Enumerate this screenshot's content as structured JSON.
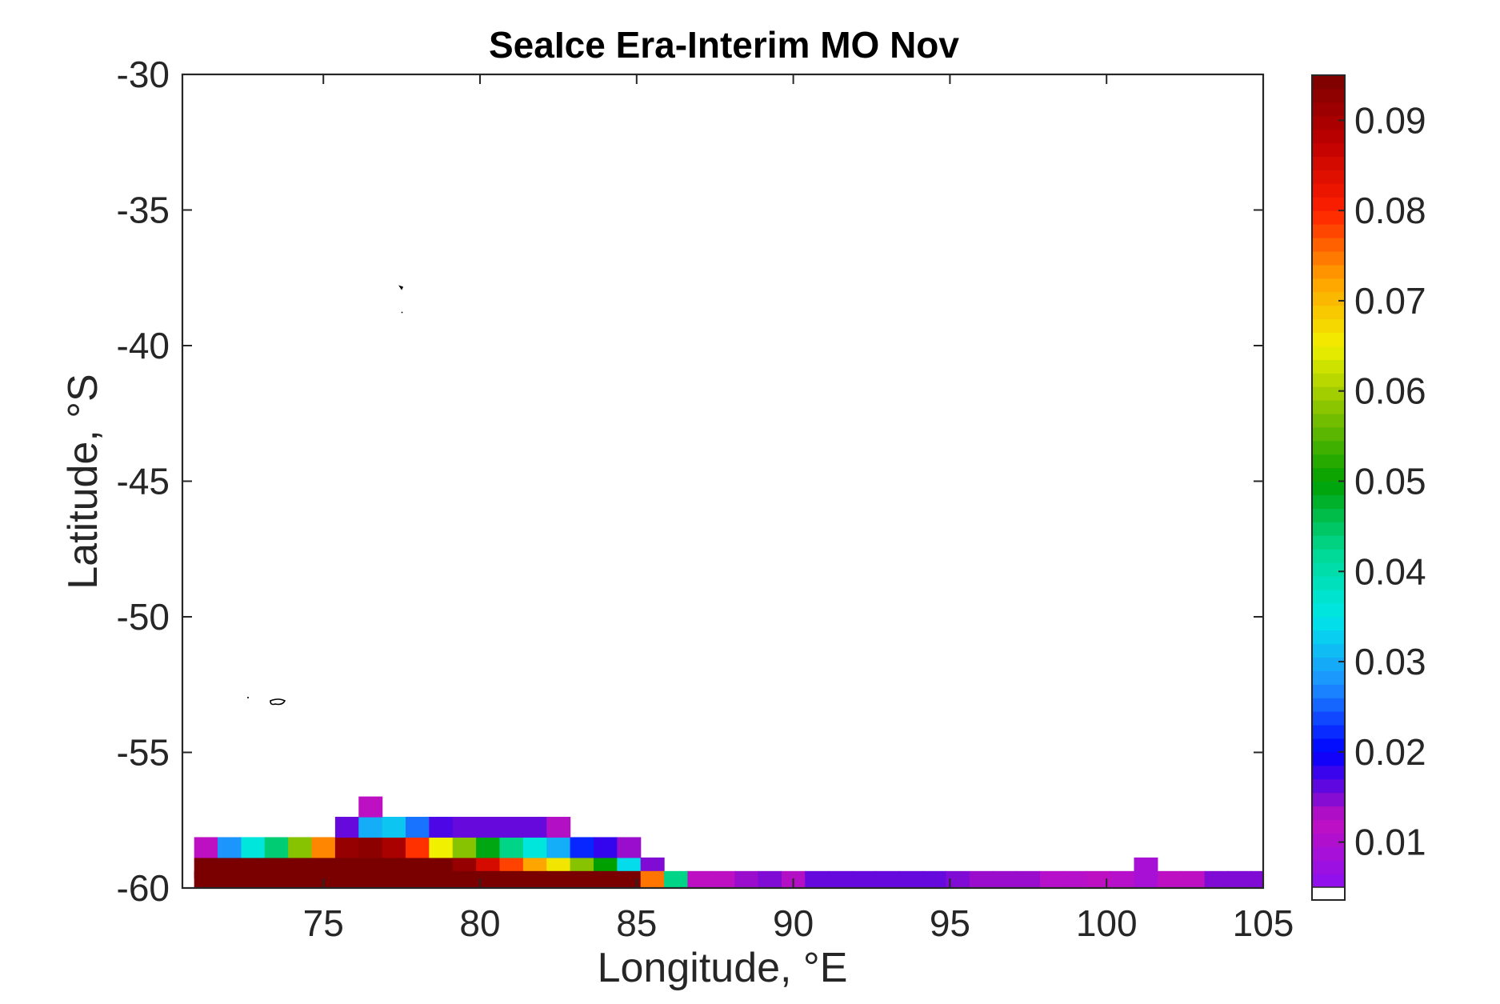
{
  "chart_data": {
    "type": "heatmap",
    "title": "SeaIce Era-Interim MO Nov",
    "xlabel": "Longitude, °E",
    "ylabel": "Latitude, °S",
    "xlim": [
      70.5,
      105
    ],
    "ylim": [
      -60,
      -30
    ],
    "xticks": [
      "75",
      "80",
      "85",
      "90",
      "95",
      "100",
      "105"
    ],
    "yticks": [
      "-30",
      "-35",
      "-40",
      "-45",
      "-50",
      "-55",
      "-60"
    ],
    "colorbar": {
      "min": 0.005,
      "max": 0.095,
      "ticks": [
        "0.01",
        "0.02",
        "0.03",
        "0.04",
        "0.05",
        "0.06",
        "0.07",
        "0.08",
        "0.09"
      ],
      "colormap": [
        "#8c10f0",
        "#c010c0",
        "#0000ff",
        "#1e90ff",
        "#00e8e8",
        "#00d890",
        "#00a000",
        "#80c000",
        "#f0f000",
        "#ffa000",
        "#ff2000",
        "#c00000",
        "#7a0000"
      ]
    },
    "grid_step_deg": 0.75,
    "cells": [
      {
        "lon": 71.25,
        "lat": -59.25,
        "value": 0.095
      },
      {
        "lon": 72.0,
        "lat": -59.25,
        "value": 0.095
      },
      {
        "lon": 72.75,
        "lat": -59.25,
        "value": 0.095
      },
      {
        "lon": 73.5,
        "lat": -59.25,
        "value": 0.095
      },
      {
        "lon": 74.25,
        "lat": -59.25,
        "value": 0.095
      },
      {
        "lon": 75.0,
        "lat": -59.25,
        "value": 0.095
      },
      {
        "lon": 75.75,
        "lat": -59.25,
        "value": 0.095
      },
      {
        "lon": 76.5,
        "lat": -59.25,
        "value": 0.095
      },
      {
        "lon": 77.25,
        "lat": -59.25,
        "value": 0.095
      },
      {
        "lon": 78.0,
        "lat": -59.25,
        "value": 0.095
      },
      {
        "lon": 78.75,
        "lat": -59.25,
        "value": 0.095
      },
      {
        "lon": 79.5,
        "lat": -59.25,
        "value": 0.092
      },
      {
        "lon": 80.25,
        "lat": -59.25,
        "value": 0.085
      },
      {
        "lon": 81.0,
        "lat": -59.25,
        "value": 0.078
      },
      {
        "lon": 81.75,
        "lat": -59.25,
        "value": 0.072
      },
      {
        "lon": 82.5,
        "lat": -59.25,
        "value": 0.066
      },
      {
        "lon": 83.25,
        "lat": -59.25,
        "value": 0.058
      },
      {
        "lon": 84.0,
        "lat": -59.25,
        "value": 0.05
      },
      {
        "lon": 84.75,
        "lat": -59.25,
        "value": 0.034
      },
      {
        "lon": 85.5,
        "lat": -59.25,
        "value": 0.015
      },
      {
        "lon": 71.25,
        "lat": -59.75,
        "value": 0.095
      },
      {
        "lon": 72.0,
        "lat": -59.75,
        "value": 0.095
      },
      {
        "lon": 72.75,
        "lat": -59.75,
        "value": 0.095
      },
      {
        "lon": 73.5,
        "lat": -59.75,
        "value": 0.095
      },
      {
        "lon": 74.25,
        "lat": -59.75,
        "value": 0.095
      },
      {
        "lon": 75.0,
        "lat": -59.75,
        "value": 0.095
      },
      {
        "lon": 75.75,
        "lat": -59.75,
        "value": 0.095
      },
      {
        "lon": 76.5,
        "lat": -59.75,
        "value": 0.095
      },
      {
        "lon": 77.25,
        "lat": -59.75,
        "value": 0.095
      },
      {
        "lon": 78.0,
        "lat": -59.75,
        "value": 0.095
      },
      {
        "lon": 78.75,
        "lat": -59.75,
        "value": 0.095
      },
      {
        "lon": 79.5,
        "lat": -59.75,
        "value": 0.095
      },
      {
        "lon": 80.25,
        "lat": -59.75,
        "value": 0.095
      },
      {
        "lon": 81.0,
        "lat": -59.75,
        "value": 0.095
      },
      {
        "lon": 81.75,
        "lat": -59.75,
        "value": 0.095
      },
      {
        "lon": 82.5,
        "lat": -59.75,
        "value": 0.095
      },
      {
        "lon": 83.25,
        "lat": -59.75,
        "value": 0.095
      },
      {
        "lon": 84.0,
        "lat": -59.75,
        "value": 0.095
      },
      {
        "lon": 84.75,
        "lat": -59.75,
        "value": 0.095
      },
      {
        "lon": 85.5,
        "lat": -59.75,
        "value": 0.075
      },
      {
        "lon": 86.25,
        "lat": -59.75,
        "value": 0.043
      },
      {
        "lon": 87.0,
        "lat": -59.75,
        "value": 0.012
      },
      {
        "lon": 87.75,
        "lat": -59.75,
        "value": 0.012
      },
      {
        "lon": 88.5,
        "lat": -59.75,
        "value": 0.014
      },
      {
        "lon": 89.25,
        "lat": -59.75,
        "value": 0.015
      },
      {
        "lon": 90.0,
        "lat": -59.75,
        "value": 0.013
      },
      {
        "lon": 90.75,
        "lat": -59.75,
        "value": 0.016
      },
      {
        "lon": 91.5,
        "lat": -59.75,
        "value": 0.016
      },
      {
        "lon": 92.25,
        "lat": -59.75,
        "value": 0.016
      },
      {
        "lon": 93.0,
        "lat": -59.75,
        "value": 0.016
      },
      {
        "lon": 93.75,
        "lat": -59.75,
        "value": 0.016
      },
      {
        "lon": 94.5,
        "lat": -59.75,
        "value": 0.016
      },
      {
        "lon": 95.25,
        "lat": -59.75,
        "value": 0.015
      },
      {
        "lon": 96.0,
        "lat": -59.75,
        "value": 0.014
      },
      {
        "lon": 96.75,
        "lat": -59.75,
        "value": 0.014
      },
      {
        "lon": 97.5,
        "lat": -59.75,
        "value": 0.014
      },
      {
        "lon": 98.25,
        "lat": -59.75,
        "value": 0.011
      },
      {
        "lon": 99.0,
        "lat": -59.75,
        "value": 0.011
      },
      {
        "lon": 99.75,
        "lat": -59.75,
        "value": 0.012
      },
      {
        "lon": 100.5,
        "lat": -59.75,
        "value": 0.011
      },
      {
        "lon": 101.25,
        "lat": -59.75,
        "value": 0.009
      },
      {
        "lon": 102.0,
        "lat": -59.75,
        "value": 0.012
      },
      {
        "lon": 102.75,
        "lat": -59.75,
        "value": 0.012
      },
      {
        "lon": 103.5,
        "lat": -59.75,
        "value": 0.015
      },
      {
        "lon": 104.25,
        "lat": -59.75,
        "value": 0.015
      },
      {
        "lon": 105.0,
        "lat": -59.75,
        "value": 0.015
      },
      {
        "lon": 101.25,
        "lat": -59.25,
        "value": 0.009
      },
      {
        "lon": 71.25,
        "lat": -58.5,
        "value": 0.012
      },
      {
        "lon": 72.0,
        "lat": -58.5,
        "value": 0.028
      },
      {
        "lon": 72.75,
        "lat": -58.5,
        "value": 0.036
      },
      {
        "lon": 73.5,
        "lat": -58.5,
        "value": 0.044
      },
      {
        "lon": 74.25,
        "lat": -58.5,
        "value": 0.058
      },
      {
        "lon": 75.0,
        "lat": -58.5,
        "value": 0.074
      },
      {
        "lon": 75.75,
        "lat": -58.5,
        "value": 0.092
      },
      {
        "lon": 76.5,
        "lat": -58.5,
        "value": 0.093
      },
      {
        "lon": 77.25,
        "lat": -58.5,
        "value": 0.09
      },
      {
        "lon": 78.0,
        "lat": -58.5,
        "value": 0.079
      },
      {
        "lon": 78.75,
        "lat": -58.5,
        "value": 0.065
      },
      {
        "lon": 79.5,
        "lat": -58.5,
        "value": 0.058
      },
      {
        "lon": 80.25,
        "lat": -58.5,
        "value": 0.049
      },
      {
        "lon": 81.0,
        "lat": -58.5,
        "value": 0.043
      },
      {
        "lon": 81.75,
        "lat": -58.5,
        "value": 0.036
      },
      {
        "lon": 82.5,
        "lat": -58.5,
        "value": 0.03
      },
      {
        "lon": 83.25,
        "lat": -58.5,
        "value": 0.022
      },
      {
        "lon": 84.0,
        "lat": -58.5,
        "value": 0.018
      },
      {
        "lon": 84.75,
        "lat": -58.5,
        "value": 0.014
      },
      {
        "lon": 75.75,
        "lat": -57.75,
        "value": 0.016
      },
      {
        "lon": 76.5,
        "lat": -57.75,
        "value": 0.03
      },
      {
        "lon": 77.25,
        "lat": -57.75,
        "value": 0.032
      },
      {
        "lon": 78.0,
        "lat": -57.75,
        "value": 0.026
      },
      {
        "lon": 78.75,
        "lat": -57.75,
        "value": 0.017
      },
      {
        "lon": 79.5,
        "lat": -57.75,
        "value": 0.016
      },
      {
        "lon": 80.25,
        "lat": -57.75,
        "value": 0.016
      },
      {
        "lon": 81.0,
        "lat": -57.75,
        "value": 0.016
      },
      {
        "lon": 81.75,
        "lat": -57.75,
        "value": 0.016
      },
      {
        "lon": 82.5,
        "lat": -57.75,
        "value": 0.013
      },
      {
        "lon": 76.5,
        "lat": -57.0,
        "value": 0.012
      }
    ]
  }
}
